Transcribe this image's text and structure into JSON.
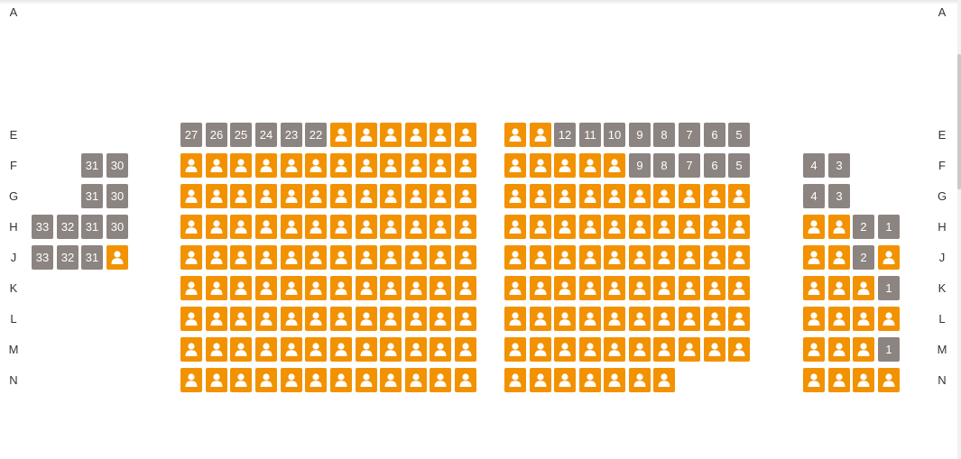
{
  "colors": {
    "available": "#f29200",
    "sold": "#8c8480",
    "wheelchair": "#e8002b"
  },
  "icons": {
    "available": "person-icon",
    "wheelchair": "wheelchair-icon"
  },
  "rows": [
    {
      "label": "A",
      "seats": [
        {
          "type": "wheelchair"
        },
        {
          "type": "wheelchair"
        }
      ]
    },
    {
      "label": "E",
      "seats": [
        {
          "type": "taken",
          "number": "27"
        },
        {
          "type": "taken",
          "number": "26"
        },
        {
          "type": "taken",
          "number": "25"
        },
        {
          "type": "taken",
          "number": "24"
        },
        {
          "type": "taken",
          "number": "23"
        },
        {
          "type": "taken",
          "number": "22"
        },
        {
          "type": "free"
        },
        {
          "type": "free"
        },
        {
          "type": "free"
        },
        {
          "type": "free"
        },
        {
          "type": "free"
        },
        {
          "type": "free"
        },
        {
          "type": "free"
        },
        {
          "type": "free"
        },
        {
          "type": "taken",
          "number": "12"
        },
        {
          "type": "taken",
          "number": "11"
        },
        {
          "type": "taken",
          "number": "10"
        },
        {
          "type": "taken",
          "number": "9"
        },
        {
          "type": "taken",
          "number": "8"
        },
        {
          "type": "taken",
          "number": "7"
        },
        {
          "type": "taken",
          "number": "6"
        },
        {
          "type": "taken",
          "number": "5"
        }
      ]
    },
    {
      "label": "F",
      "seats": [
        {
          "type": "taken",
          "number": "31"
        },
        {
          "type": "taken",
          "number": "30"
        },
        {
          "type": "free"
        },
        {
          "type": "free"
        },
        {
          "type": "free"
        },
        {
          "type": "free"
        },
        {
          "type": "free"
        },
        {
          "type": "free"
        },
        {
          "type": "free"
        },
        {
          "type": "free"
        },
        {
          "type": "free"
        },
        {
          "type": "free"
        },
        {
          "type": "free"
        },
        {
          "type": "free"
        },
        {
          "type": "free"
        },
        {
          "type": "free"
        },
        {
          "type": "free"
        },
        {
          "type": "free"
        },
        {
          "type": "free"
        },
        {
          "type": "taken",
          "number": "9"
        },
        {
          "type": "taken",
          "number": "8"
        },
        {
          "type": "taken",
          "number": "7"
        },
        {
          "type": "taken",
          "number": "6"
        },
        {
          "type": "taken",
          "number": "5"
        },
        {
          "type": "taken",
          "number": "4"
        },
        {
          "type": "taken",
          "number": "3"
        }
      ]
    },
    {
      "label": "G",
      "seats": [
        {
          "type": "taken",
          "number": "31"
        },
        {
          "type": "taken",
          "number": "30"
        },
        {
          "type": "free"
        },
        {
          "type": "free"
        },
        {
          "type": "free"
        },
        {
          "type": "free"
        },
        {
          "type": "free"
        },
        {
          "type": "free"
        },
        {
          "type": "free"
        },
        {
          "type": "free"
        },
        {
          "type": "free"
        },
        {
          "type": "free"
        },
        {
          "type": "free"
        },
        {
          "type": "free"
        },
        {
          "type": "free"
        },
        {
          "type": "free"
        },
        {
          "type": "free"
        },
        {
          "type": "free"
        },
        {
          "type": "free"
        },
        {
          "type": "free"
        },
        {
          "type": "free"
        },
        {
          "type": "free"
        },
        {
          "type": "free"
        },
        {
          "type": "free"
        },
        {
          "type": "taken",
          "number": "4"
        },
        {
          "type": "taken",
          "number": "3"
        }
      ]
    },
    {
      "label": "H",
      "seats": [
        {
          "type": "taken",
          "number": "33"
        },
        {
          "type": "taken",
          "number": "32"
        },
        {
          "type": "taken",
          "number": "31"
        },
        {
          "type": "taken",
          "number": "30"
        },
        {
          "type": "free"
        },
        {
          "type": "free"
        },
        {
          "type": "free"
        },
        {
          "type": "free"
        },
        {
          "type": "free"
        },
        {
          "type": "free"
        },
        {
          "type": "free"
        },
        {
          "type": "free"
        },
        {
          "type": "free"
        },
        {
          "type": "free"
        },
        {
          "type": "free"
        },
        {
          "type": "free"
        },
        {
          "type": "free"
        },
        {
          "type": "free"
        },
        {
          "type": "free"
        },
        {
          "type": "free"
        },
        {
          "type": "free"
        },
        {
          "type": "free"
        },
        {
          "type": "free"
        },
        {
          "type": "free"
        },
        {
          "type": "free"
        },
        {
          "type": "free"
        },
        {
          "type": "free"
        },
        {
          "type": "free"
        },
        {
          "type": "taken",
          "number": "2"
        },
        {
          "type": "taken",
          "number": "1"
        }
      ]
    },
    {
      "label": "J",
      "seats": [
        {
          "type": "taken",
          "number": "33"
        },
        {
          "type": "taken",
          "number": "32"
        },
        {
          "type": "taken",
          "number": "31"
        },
        {
          "type": "free"
        },
        {
          "type": "free"
        },
        {
          "type": "free"
        },
        {
          "type": "free"
        },
        {
          "type": "free"
        },
        {
          "type": "free"
        },
        {
          "type": "free"
        },
        {
          "type": "free"
        },
        {
          "type": "free"
        },
        {
          "type": "free"
        },
        {
          "type": "free"
        },
        {
          "type": "free"
        },
        {
          "type": "free"
        },
        {
          "type": "free"
        },
        {
          "type": "free"
        },
        {
          "type": "free"
        },
        {
          "type": "free"
        },
        {
          "type": "free"
        },
        {
          "type": "free"
        },
        {
          "type": "free"
        },
        {
          "type": "free"
        },
        {
          "type": "free"
        },
        {
          "type": "free"
        },
        {
          "type": "free"
        },
        {
          "type": "free"
        },
        {
          "type": "taken",
          "number": "2"
        },
        {
          "type": "free"
        }
      ]
    },
    {
      "label": "K",
      "seats": [
        {
          "type": "free"
        },
        {
          "type": "free"
        },
        {
          "type": "free"
        },
        {
          "type": "free"
        },
        {
          "type": "free"
        },
        {
          "type": "free"
        },
        {
          "type": "free"
        },
        {
          "type": "free"
        },
        {
          "type": "free"
        },
        {
          "type": "free"
        },
        {
          "type": "free"
        },
        {
          "type": "free"
        },
        {
          "type": "free"
        },
        {
          "type": "free"
        },
        {
          "type": "free"
        },
        {
          "type": "free"
        },
        {
          "type": "free"
        },
        {
          "type": "free"
        },
        {
          "type": "free"
        },
        {
          "type": "free"
        },
        {
          "type": "free"
        },
        {
          "type": "free"
        },
        {
          "type": "free"
        },
        {
          "type": "free"
        },
        {
          "type": "free"
        },
        {
          "type": "taken",
          "number": "1"
        }
      ]
    },
    {
      "label": "L",
      "seats": [
        {
          "type": "free"
        },
        {
          "type": "free"
        },
        {
          "type": "free"
        },
        {
          "type": "free"
        },
        {
          "type": "free"
        },
        {
          "type": "free"
        },
        {
          "type": "free"
        },
        {
          "type": "free"
        },
        {
          "type": "free"
        },
        {
          "type": "free"
        },
        {
          "type": "free"
        },
        {
          "type": "free"
        },
        {
          "type": "free"
        },
        {
          "type": "free"
        },
        {
          "type": "free"
        },
        {
          "type": "free"
        },
        {
          "type": "free"
        },
        {
          "type": "free"
        },
        {
          "type": "free"
        },
        {
          "type": "free"
        },
        {
          "type": "free"
        },
        {
          "type": "free"
        },
        {
          "type": "free"
        },
        {
          "type": "free"
        },
        {
          "type": "free"
        },
        {
          "type": "free"
        }
      ]
    },
    {
      "label": "M",
      "seats": [
        {
          "type": "free"
        },
        {
          "type": "free"
        },
        {
          "type": "free"
        },
        {
          "type": "free"
        },
        {
          "type": "free"
        },
        {
          "type": "free"
        },
        {
          "type": "free"
        },
        {
          "type": "free"
        },
        {
          "type": "free"
        },
        {
          "type": "free"
        },
        {
          "type": "free"
        },
        {
          "type": "free"
        },
        {
          "type": "free"
        },
        {
          "type": "free"
        },
        {
          "type": "free"
        },
        {
          "type": "free"
        },
        {
          "type": "free"
        },
        {
          "type": "free"
        },
        {
          "type": "free"
        },
        {
          "type": "free"
        },
        {
          "type": "free"
        },
        {
          "type": "free"
        },
        {
          "type": "free"
        },
        {
          "type": "free"
        },
        {
          "type": "free"
        },
        {
          "type": "taken",
          "number": "1"
        }
      ]
    },
    {
      "label": "N",
      "seats": [
        {
          "type": "free"
        },
        {
          "type": "free"
        },
        {
          "type": "free"
        },
        {
          "type": "free"
        },
        {
          "type": "free"
        },
        {
          "type": "free"
        },
        {
          "type": "free"
        },
        {
          "type": "free"
        },
        {
          "type": "free"
        },
        {
          "type": "free"
        },
        {
          "type": "free"
        },
        {
          "type": "free"
        },
        {
          "type": "free"
        },
        {
          "type": "free"
        },
        {
          "type": "free"
        },
        {
          "type": "free"
        },
        {
          "type": "free"
        },
        {
          "type": "free"
        },
        {
          "type": "free"
        },
        {
          "type": "free"
        },
        {
          "type": "free"
        },
        {
          "type": "free"
        },
        {
          "type": "free"
        },
        {
          "type": "free"
        }
      ]
    }
  ]
}
